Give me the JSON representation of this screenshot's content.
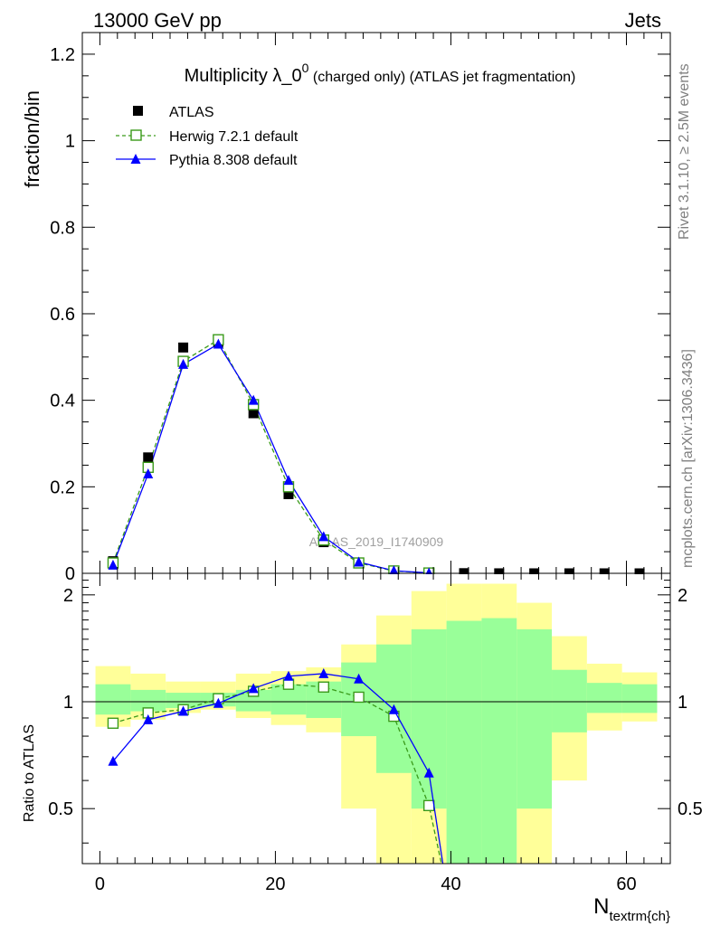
{
  "header": {
    "left": "13000 GeV pp",
    "right": "Jets"
  },
  "side_labels": {
    "rivet": "Rivet 3.1.10, ≥ 2.5M events",
    "mcplots": "mcplots.cern.ch [arXiv:1306.3436]"
  },
  "watermark": "ATLAS_2019_I1740909",
  "chart_data": [
    {
      "type": "scatter",
      "title_main": "Multiplicity λ_0",
      "title_sup": "0",
      "title_rest": " (charged only) (ATLAS jet fragmentation)",
      "xlabel": "N",
      "xlabel_sub": "textrm{ch}",
      "ylabel": "fraction/bin",
      "xlim": [
        -2,
        65
      ],
      "ylim": [
        0,
        1.25
      ],
      "yticks": [
        0,
        0.2,
        0.4,
        0.6,
        0.8,
        1,
        1.2
      ],
      "ytick_labels": [
        "0",
        "0.2",
        "0.4",
        "0.6",
        "0.8",
        "1",
        "1.2"
      ],
      "x": [
        1.5,
        5.5,
        9.5,
        13.5,
        17.5,
        21.5,
        25.5,
        29.5,
        33.5,
        37.5,
        41.5,
        45.5,
        49.5,
        53.5,
        57.5,
        61.5
      ],
      "series": [
        {
          "name": "ATLAS",
          "style": "data",
          "color": "#000000",
          "values": [
            0.028,
            0.268,
            0.522,
            0.535,
            0.37,
            0.183,
            0.072,
            0.023,
            0.006,
            0.0015,
            0.0004,
            0.0001,
            3e-05,
            1e-05,
            3e-06,
            1e-06
          ]
        },
        {
          "name": "Herwig 7.2.1 default",
          "style": "dashed-open-square",
          "color": "#3a9a1a",
          "values": [
            0.024,
            0.245,
            0.49,
            0.54,
            0.39,
            0.2,
            0.077,
            0.024,
            0.0055,
            0.0008
          ]
        },
        {
          "name": "Pythia 8.308 default",
          "style": "solid-triangle",
          "color": "#0000ff",
          "values": [
            0.019,
            0.23,
            0.483,
            0.53,
            0.4,
            0.215,
            0.085,
            0.026,
            0.006,
            0.001
          ]
        }
      ]
    },
    {
      "type": "line",
      "ylabel": "Ratio to ATLAS",
      "xlim": [
        -2,
        65
      ],
      "ylim": [
        0.35,
        2.3
      ],
      "yticks": [
        0.5,
        1,
        2
      ],
      "ytick_labels": [
        "0.5",
        "1",
        "2"
      ],
      "xticks": [
        0,
        20,
        40,
        60
      ],
      "xtick_labels": [
        "0",
        "20",
        "40",
        "60"
      ],
      "bands": {
        "bin_edges": [
          -0.5,
          3.5,
          7.5,
          11.5,
          15.5,
          19.5,
          23.5,
          27.5,
          31.5,
          35.5,
          39.5,
          43.5,
          47.5,
          51.5,
          55.5,
          59.5,
          63.5
        ],
        "yellow_low": [
          0.85,
          0.89,
          0.93,
          0.95,
          0.9,
          0.86,
          0.82,
          0.5,
          0.3,
          0.2,
          0.2,
          0.2,
          0.3,
          0.6,
          0.83,
          0.88
        ],
        "yellow_high": [
          1.26,
          1.2,
          1.14,
          1.14,
          1.2,
          1.22,
          1.25,
          1.45,
          1.75,
          2.05,
          2.15,
          2.15,
          1.9,
          1.53,
          1.28,
          1.21
        ],
        "green_low": [
          0.92,
          0.94,
          0.96,
          0.97,
          0.94,
          0.92,
          0.9,
          0.8,
          0.63,
          0.5,
          0.2,
          0.2,
          0.5,
          0.82,
          0.93,
          0.93
        ],
        "green_high": [
          1.12,
          1.08,
          1.06,
          1.06,
          1.08,
          1.12,
          1.14,
          1.29,
          1.45,
          1.6,
          1.69,
          1.72,
          1.6,
          1.23,
          1.13,
          1.12
        ]
      },
      "x": [
        1.5,
        5.5,
        9.5,
        13.5,
        17.5,
        21.5,
        25.5,
        29.5,
        33.5,
        37.5,
        39.5
      ],
      "series": [
        {
          "name": "Herwig 7.2.1 default",
          "color": "#3a9a1a",
          "values": [
            0.87,
            0.93,
            0.95,
            1.02,
            1.07,
            1.12,
            1.1,
            1.03,
            0.91,
            0.51,
            0.3
          ],
          "markers": [
            true,
            true,
            true,
            true,
            true,
            true,
            true,
            true,
            true,
            true,
            false
          ]
        },
        {
          "name": "Pythia 8.308 default",
          "color": "#0000ff",
          "values": [
            0.68,
            0.89,
            0.94,
            0.99,
            1.09,
            1.18,
            1.2,
            1.16,
            0.95,
            0.63,
            0.3
          ],
          "markers": [
            true,
            true,
            true,
            true,
            true,
            true,
            true,
            true,
            true,
            true,
            false
          ]
        }
      ]
    }
  ]
}
